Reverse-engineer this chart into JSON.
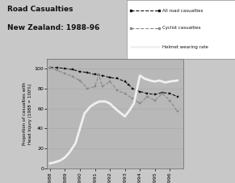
{
  "title_line1": "Road Casualties",
  "title_line2": "New Zealand: 1988-96",
  "ylabel": "Proportion of casualties with\nHead Injury (1988 = 100%)",
  "all_road_x": [
    1988,
    1988.5,
    1989,
    1989.5,
    1990,
    1990.5,
    1991,
    1991.5,
    1992,
    1992.5,
    1993,
    1993.25,
    1993.5,
    1994,
    1994.5,
    1995,
    1995.5,
    1996,
    1996.5
  ],
  "all_road_y": [
    101,
    101,
    100,
    99,
    97,
    96,
    94,
    93,
    91,
    90,
    87,
    84,
    80,
    77,
    75,
    74,
    76,
    75,
    72
  ],
  "cyclist_x": [
    1988,
    1988.5,
    1989,
    1989.5,
    1990,
    1990.5,
    1991,
    1991.25,
    1991.5,
    1992,
    1992.5,
    1993,
    1993.5,
    1994,
    1994.5,
    1995,
    1995.5,
    1996,
    1996.5
  ],
  "cyclist_y": [
    101,
    98,
    95,
    92,
    88,
    80,
    82,
    94,
    82,
    87,
    78,
    75,
    70,
    65,
    72,
    68,
    75,
    68,
    57
  ],
  "helmet_x": [
    1988,
    1988.3,
    1988.7,
    1989,
    1989.3,
    1989.7,
    1990,
    1990.3,
    1990.7,
    1991,
    1991.3,
    1991.7,
    1992,
    1992.2,
    1992.5,
    1993,
    1993.3,
    1993.6,
    1994,
    1994.3,
    1994.7,
    1995,
    1995.3,
    1995.7,
    1996,
    1996.5
  ],
  "helmet_y": [
    5,
    6,
    8,
    11,
    16,
    25,
    40,
    55,
    62,
    65,
    67,
    67,
    65,
    62,
    58,
    52,
    58,
    65,
    93,
    90,
    88,
    87,
    88,
    86,
    87,
    88
  ],
  "ylim": [
    0,
    110
  ],
  "yticks": [
    0,
    20,
    40,
    60,
    80,
    100
  ],
  "xlim_left": 1987.8,
  "xlim_right": 1996.9,
  "bg_color": "#c8c8c8",
  "plot_bg": "#b8b8b8",
  "all_road_color": "#111111",
  "cyclist_color": "#888888",
  "helmet_color": "#f0f0f0",
  "grid_color": "#aaaaaa",
  "legend_labels": [
    "All road casualties",
    "Cyclist casualties",
    "Helmet wearing rate"
  ]
}
